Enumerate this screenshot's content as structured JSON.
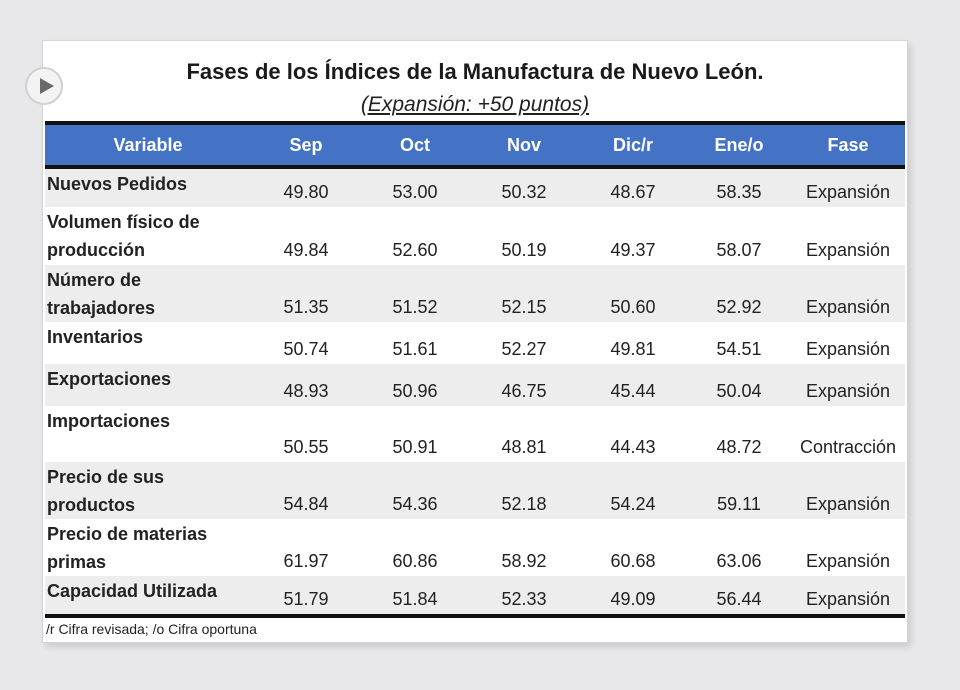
{
  "title": "Fases de los Índices de la Manufactura de Nuevo León.",
  "subtitle": "(Expansión: +50 puntos)",
  "headers": [
    "Variable",
    "Sep",
    "Oct",
    "Nov",
    "Dic/r",
    "Ene/o",
    "Fase"
  ],
  "rows": [
    {
      "variable": "Nuevos Pedidos",
      "values": [
        "49.80",
        "53.00",
        "50.32",
        "48.67",
        "58.35"
      ],
      "fase": "Expansión"
    },
    {
      "variable": "Volumen físico de producción",
      "values": [
        "49.84",
        "52.60",
        "50.19",
        "49.37",
        "58.07"
      ],
      "fase": "Expansión"
    },
    {
      "variable": "Número de trabajadores",
      "values": [
        "51.35",
        "51.52",
        "52.15",
        "50.60",
        "52.92"
      ],
      "fase": "Expansión"
    },
    {
      "variable": "Inventarios",
      "values": [
        "50.74",
        "51.61",
        "52.27",
        "49.81",
        "54.51"
      ],
      "fase": "Expansión"
    },
    {
      "variable": "Exportaciones",
      "values": [
        "48.93",
        "50.96",
        "46.75",
        "45.44",
        "50.04"
      ],
      "fase": "Expansión"
    },
    {
      "variable": "Importaciones",
      "values": [
        "50.55",
        "50.91",
        "48.81",
        "44.43",
        "48.72"
      ],
      "fase": "Contracción"
    },
    {
      "variable": "Precio de sus productos",
      "values": [
        "54.84",
        "54.36",
        "52.18",
        "54.24",
        "59.11"
      ],
      "fase": "Expansión"
    },
    {
      "variable": "Precio de materias primas",
      "values": [
        "61.97",
        "60.86",
        "58.92",
        "60.68",
        "63.06"
      ],
      "fase": "Expansión"
    },
    {
      "variable": "Capacidad Utilizada",
      "values": [
        "51.79",
        "51.84",
        "52.33",
        "49.09",
        "56.44"
      ],
      "fase": "Expansión"
    }
  ],
  "footnote": "/r  Cifra revisada; /o  Cifra oportuna"
}
